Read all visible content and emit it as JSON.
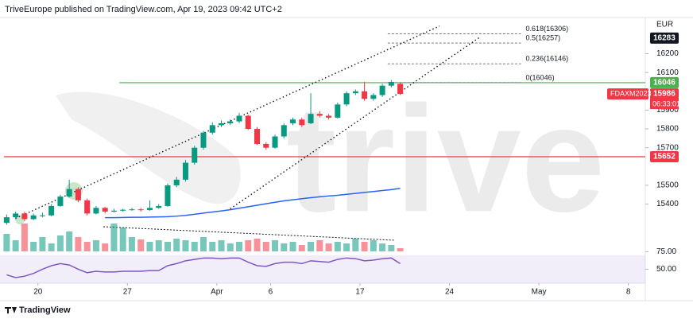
{
  "chart_data": {
    "type": "candlestick",
    "title": "TriveEurope published on TradingView.com, Apr 19, 2023 09:42 UTC+2",
    "brand": "TradingView",
    "watermark": "trive",
    "currency": "EUR",
    "symbol": "FDAXM2023",
    "countdown": "06:33:01",
    "up_color": "#089981",
    "down_color": "#f23645",
    "x": [
      0,
      1,
      2,
      3,
      4,
      5,
      6,
      7,
      8,
      9,
      10,
      11,
      12,
      13,
      14,
      15,
      16,
      17,
      18,
      19,
      20,
      21,
      22,
      23,
      24,
      25,
      26,
      27,
      28,
      29,
      30,
      31,
      32,
      33,
      34,
      35,
      36,
      37,
      38,
      39,
      40,
      41,
      42,
      43,
      44
    ],
    "open": [
      15300,
      15330,
      15350,
      15320,
      15340,
      15340,
      15390,
      15440,
      15480,
      15420,
      15350,
      15380,
      15360,
      15365,
      15370,
      15372,
      15368,
      15380,
      15390,
      15500,
      15530,
      15620,
      15700,
      15780,
      15820,
      15830,
      15840,
      15870,
      15800,
      15720,
      15700,
      15760,
      15830,
      15850,
      15830,
      15880,
      15870,
      15860,
      15930,
      15990,
      16000,
      15960,
      15980,
      16030,
      16040
    ],
    "high": [
      15345,
      15360,
      15360,
      15350,
      15355,
      15400,
      15450,
      15530,
      15490,
      15430,
      15390,
      15385,
      15375,
      15375,
      15380,
      15380,
      15420,
      15400,
      15510,
      15545,
      15635,
      15710,
      15790,
      15835,
      15845,
      15850,
      15885,
      15875,
      15810,
      15730,
      15770,
      15830,
      15860,
      15860,
      15990,
      15895,
      15880,
      15940,
      16000,
      16010,
      16050,
      15990,
      16040,
      16060,
      16045
    ],
    "low": [
      15290,
      15320,
      15310,
      15315,
      15330,
      15335,
      15385,
      15435,
      15410,
      15340,
      15345,
      15350,
      15355,
      15360,
      15365,
      15360,
      15365,
      15375,
      15385,
      15490,
      15520,
      15610,
      15690,
      15770,
      15810,
      15820,
      15830,
      15795,
      15715,
      15690,
      15695,
      15750,
      15820,
      15810,
      15825,
      15860,
      15850,
      15855,
      15920,
      15980,
      15950,
      15950,
      15970,
      16020,
      15980
    ],
    "close": [
      15330,
      15350,
      15320,
      15340,
      15340,
      15390,
      15440,
      15480,
      15420,
      15350,
      15380,
      15360,
      15365,
      15370,
      15372,
      15368,
      15380,
      15390,
      15500,
      15530,
      15620,
      15700,
      15780,
      15820,
      15830,
      15840,
      15870,
      15800,
      15720,
      15700,
      15760,
      15820,
      15850,
      15820,
      15880,
      15870,
      15860,
      15930,
      15990,
      16000,
      15960,
      15980,
      16030,
      16050,
      15986
    ],
    "xlim": [
      -0.3,
      71.4
    ],
    "xticks": [
      {
        "value": 3.5,
        "label": "20"
      },
      {
        "value": 13.5,
        "label": "27"
      },
      {
        "value": 23.5,
        "label": "Apr"
      },
      {
        "value": 29.5,
        "label": "6"
      },
      {
        "value": 39.5,
        "label": "17"
      },
      {
        "value": 49.5,
        "label": "24"
      },
      {
        "value": 59.5,
        "label": "May"
      },
      {
        "value": 69.5,
        "label": "8"
      }
    ],
    "ylim": [
      15140,
      16380
    ],
    "yticks": [
      15400,
      15500,
      15700,
      15800,
      15900,
      16100,
      16200
    ],
    "ma": {
      "color": "#2962ff",
      "values": [
        null,
        null,
        null,
        null,
        null,
        null,
        null,
        null,
        null,
        null,
        null,
        15328,
        15328,
        15329,
        15330,
        15330,
        15331,
        15332,
        15333,
        15336,
        15340,
        15346,
        15352,
        15358,
        15364,
        15370,
        15378,
        15386,
        15394,
        15402,
        15410,
        15417,
        15423,
        15429,
        15434,
        15439,
        15443,
        15447,
        15452,
        15457,
        15462,
        15467,
        15472,
        15477,
        15484
      ]
    },
    "volume": {
      "vlim": [
        0,
        40
      ],
      "values": [
        22,
        14,
        35,
        12,
        18,
        10,
        20,
        25,
        18,
        12,
        14,
        10,
        35,
        30,
        18,
        15,
        12,
        14,
        12,
        16,
        14,
        12,
        18,
        12,
        14,
        10,
        12,
        14,
        16,
        12,
        14,
        10,
        12,
        8,
        12,
        14,
        10,
        12,
        10,
        16,
        12,
        14,
        10,
        8,
        4
      ]
    },
    "rsi": {
      "color": "#7e57c2",
      "ylim": [
        30,
        80
      ],
      "band": [
        30,
        70
      ],
      "yticks": [
        {
          "value": 75,
          "label": "75.00"
        },
        {
          "value": 50,
          "label": "50.00"
        }
      ],
      "values": [
        42,
        38,
        40,
        44,
        50,
        55,
        58,
        56,
        50,
        45,
        47,
        46,
        46,
        47,
        47,
        47,
        48,
        48,
        55,
        58,
        62,
        64,
        66,
        66,
        65,
        66,
        66,
        60,
        55,
        54,
        58,
        60,
        60,
        58,
        62,
        61,
        60,
        64,
        66,
        65,
        62,
        63,
        65,
        66,
        58
      ]
    },
    "hlines": [
      {
        "value": 16046,
        "color": "#4caf50",
        "from": 12.6
      },
      {
        "value": 15652,
        "color": "#f23645",
        "from": -0.3
      }
    ],
    "fib": {
      "x": [
        42.6,
        57.5
      ],
      "levels": [
        {
          "value": 16306,
          "label": "0.618(16306)"
        },
        {
          "value": 16257,
          "label": "0.5(16257)"
        },
        {
          "value": 16146,
          "label": "0.236(16146)"
        },
        {
          "value": 16046,
          "label": "0(16046)"
        }
      ]
    },
    "trendlines": [
      {
        "x": [
          1,
          48.4
        ],
        "y": [
          15324,
          16347
        ]
      },
      {
        "x": [
          25,
          52.9
        ],
        "y": [
          15375,
          16288
        ]
      }
    ],
    "price_labels": [
      {
        "value": 16283,
        "color": "#131722"
      },
      {
        "value": 16046,
        "color": "#4caf50"
      },
      {
        "value": 15986,
        "color": "#f23645"
      },
      {
        "value": 15652,
        "color": "#f23645"
      }
    ]
  }
}
